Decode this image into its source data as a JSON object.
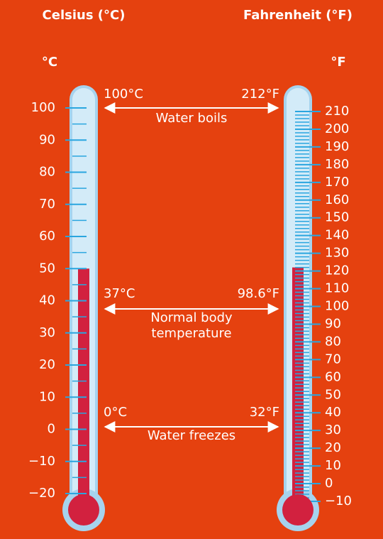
{
  "headers": {
    "celsius": "Celsius (°C)",
    "fahrenheit": "Fahrenheit (°F)"
  },
  "celsius": {
    "unit": "°C",
    "fill_level": 50,
    "ticks": [
      100,
      90,
      80,
      70,
      60,
      50,
      40,
      30,
      20,
      10,
      0,
      {
        "value": -10,
        "label": "−10"
      },
      {
        "value": -20,
        "label": "−20"
      }
    ]
  },
  "fahrenheit": {
    "unit": "°F",
    "fill_level": 122,
    "ticks": [
      210,
      200,
      190,
      180,
      170,
      160,
      150,
      140,
      130,
      120,
      110,
      100,
      90,
      80,
      70,
      60,
      50,
      40,
      30,
      20,
      10,
      0,
      {
        "value": -10,
        "label": "−10"
      }
    ]
  },
  "annotations": [
    {
      "celsius": "100°C",
      "fahrenheit": "212°F",
      "lines": [
        "Water boils"
      ]
    },
    {
      "celsius": "37°C",
      "fahrenheit": "98.6°F",
      "lines": [
        "Normal body",
        "temperature"
      ]
    },
    {
      "celsius": "0°C",
      "fahrenheit": "32°F",
      "lines": [
        "Water freezes"
      ]
    }
  ]
}
